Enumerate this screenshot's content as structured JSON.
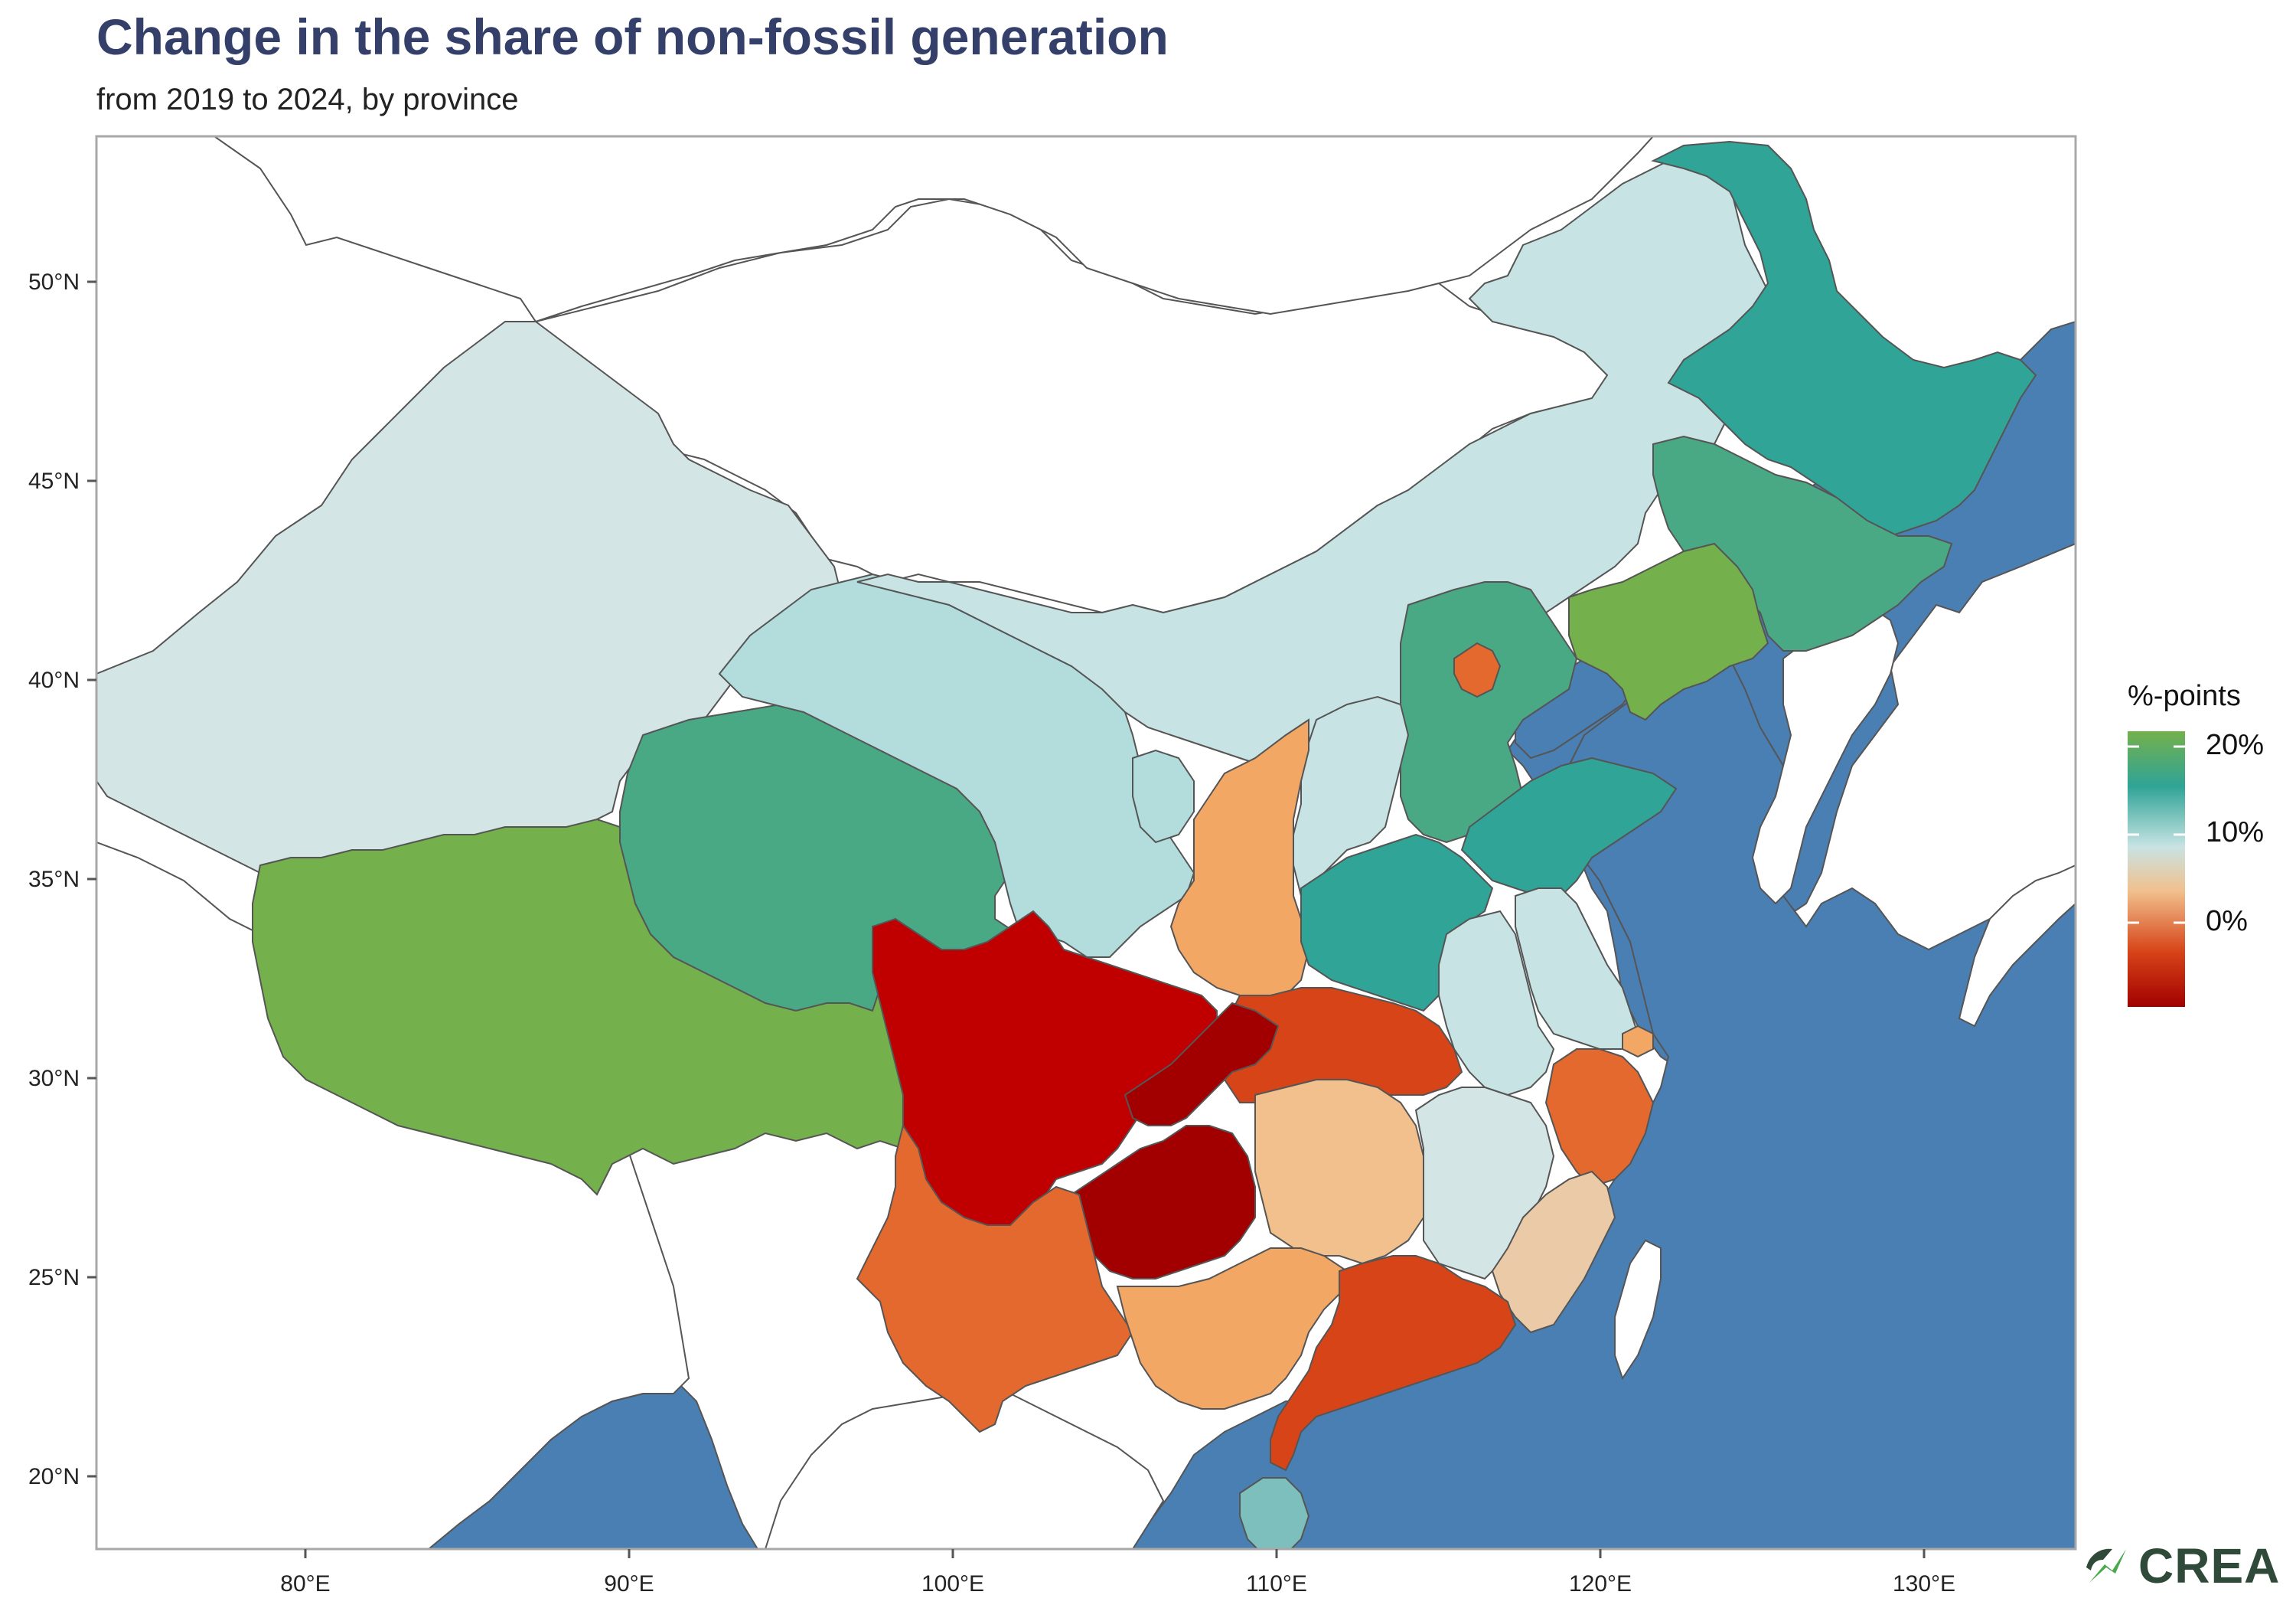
{
  "title": "Change in the share of non-fossil generation",
  "subtitle": "from 2019 to 2024, by province",
  "colors": {
    "ocean": "#4a7fb3",
    "title": "#34406a",
    "border": "#555555",
    "strong_red": "#c00000",
    "dark_red": "#a20000",
    "orange_red": "#d74418",
    "orange": "#e4692e",
    "light_orange": "#f2a765",
    "peach": "#f1c08d",
    "sand": "#ebcba7",
    "pale_blue": "#c8e3e3",
    "light_teal": "#b3dcdc",
    "teal": "#2fa497",
    "green_teal": "#4aa985",
    "green": "#74b04b",
    "hainan": "#7cbfbc"
  },
  "axes": {
    "x_ticks": [
      "80°E",
      "90°E",
      "100°E",
      "110°E",
      "120°E",
      "130°E"
    ],
    "y_ticks": [
      "50°N",
      "45°N",
      "40°N",
      "35°N",
      "30°N",
      "25°N",
      "20°N"
    ]
  },
  "legend": {
    "title": "%-points",
    "labels": [
      "20%",
      "10%",
      "0%"
    ],
    "gradient": [
      "#74b04b",
      "#2fa497",
      "#c8e3e3",
      "#f1c08d",
      "#d74418",
      "#a20000"
    ]
  },
  "logo": {
    "text": "CREA"
  },
  "regions": [
    {
      "name": "Xinjiang",
      "color_key": "pale_blue"
    },
    {
      "name": "Tibet",
      "color_key": "green"
    },
    {
      "name": "Qinghai",
      "color_key": "green_teal"
    },
    {
      "name": "Gansu",
      "color_key": "light_teal"
    },
    {
      "name": "Inner Mongolia",
      "color_key": "pale_blue"
    },
    {
      "name": "Heilongjiang",
      "color_key": "teal"
    },
    {
      "name": "Jilin",
      "color_key": "green_teal"
    },
    {
      "name": "Liaoning",
      "color_key": "green"
    },
    {
      "name": "Hebei",
      "color_key": "green_teal"
    },
    {
      "name": "Beijing",
      "color_key": "orange"
    },
    {
      "name": "Shanxi",
      "color_key": "pale_blue"
    },
    {
      "name": "Shaanxi",
      "color_key": "light_orange"
    },
    {
      "name": "Ningxia",
      "color_key": "light_teal"
    },
    {
      "name": "Shandong",
      "color_key": "teal"
    },
    {
      "name": "Henan",
      "color_key": "teal"
    },
    {
      "name": "Jiangsu",
      "color_key": "pale_blue"
    },
    {
      "name": "Anhui",
      "color_key": "pale_blue"
    },
    {
      "name": "Hubei",
      "color_key": "orange_red"
    },
    {
      "name": "Sichuan",
      "color_key": "strong_red"
    },
    {
      "name": "Chongqing",
      "color_key": "dark_red"
    },
    {
      "name": "Guizhou",
      "color_key": "dark_red"
    },
    {
      "name": "Yunnan",
      "color_key": "orange"
    },
    {
      "name": "Hunan",
      "color_key": "peach"
    },
    {
      "name": "Jiangxi",
      "color_key": "pale_blue"
    },
    {
      "name": "Zhejiang",
      "color_key": "orange"
    },
    {
      "name": "Shanghai",
      "color_key": "light_orange"
    },
    {
      "name": "Fujian",
      "color_key": "sand"
    },
    {
      "name": "Guangxi",
      "color_key": "light_orange"
    },
    {
      "name": "Guangdong",
      "color_key": "orange_red"
    },
    {
      "name": "Hainan",
      "color_key": "hainan"
    }
  ]
}
